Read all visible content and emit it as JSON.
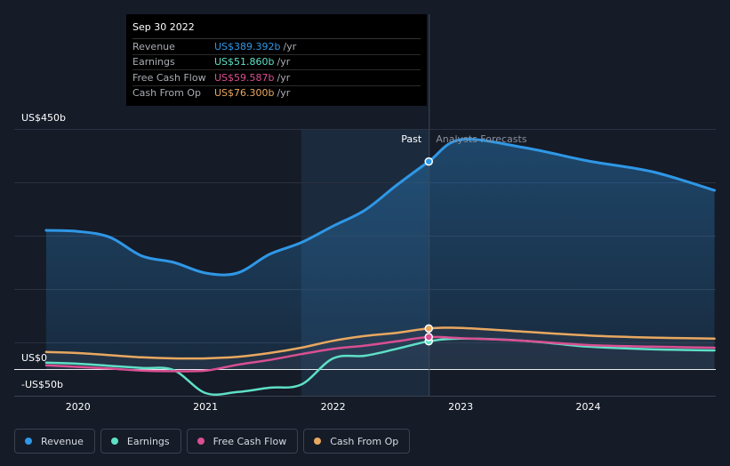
{
  "chart_data": {
    "type": "line",
    "x": [
      2019.75,
      2020.0,
      2020.25,
      2020.5,
      2020.75,
      2021.0,
      2021.25,
      2021.5,
      2021.75,
      2022.0,
      2022.25,
      2022.5,
      2022.75,
      2023.0,
      2023.5,
      2024.0,
      2024.5,
      2024.99
    ],
    "series": [
      {
        "name": "Revenue",
        "color": "#2f97e6",
        "values": [
          260,
          258,
          247,
          212,
          200,
          180,
          180,
          215,
          237,
          268,
          298,
          345,
          389,
          430,
          415,
          390,
          370,
          335
        ]
      },
      {
        "name": "Earnings",
        "color": "#5fe0c6",
        "values": [
          12,
          10,
          6,
          2,
          -2,
          -45,
          -43,
          -35,
          -29,
          20,
          25,
          38,
          52,
          57,
          53,
          42,
          37,
          35
        ]
      },
      {
        "name": "Free Cash Flow",
        "color": "#d94f92",
        "values": [
          7,
          4,
          1,
          -3,
          -4,
          -3,
          8,
          17,
          28,
          38,
          44,
          52,
          60,
          58,
          53,
          45,
          42,
          40
        ]
      },
      {
        "name": "Cash From Op",
        "color": "#e8a860",
        "values": [
          32,
          30,
          26,
          22,
          20,
          20,
          23,
          30,
          40,
          53,
          62,
          68,
          76,
          77,
          70,
          63,
          59,
          57
        ]
      }
    ],
    "xticks": [
      "2020",
      "2021",
      "2022",
      "2023",
      "2024"
    ],
    "xtick_values": [
      2020,
      2021,
      2022,
      2023,
      2024
    ],
    "xlim": [
      2019.5,
      2025.0
    ],
    "ylim": [
      -50,
      450
    ],
    "ytick_labels": {
      "top": "US$450b",
      "zero": "US$0",
      "bottom": "-US$50b"
    },
    "past_label": "Past",
    "forecast_label": "Analysts Forecasts",
    "divider_x": 2022.75,
    "highlight_start_x": 2021.75,
    "grid": true
  },
  "tooltip": {
    "date": "Sep 30 2022",
    "rows": [
      {
        "label": "Revenue",
        "value": "US$389.392b",
        "unit": "/yr",
        "color": "#2f97e6"
      },
      {
        "label": "Earnings",
        "value": "US$51.860b",
        "unit": "/yr",
        "color": "#5fe0c6"
      },
      {
        "label": "Free Cash Flow",
        "value": "US$59.587b",
        "unit": "/yr",
        "color": "#d94f92"
      },
      {
        "label": "Cash From Op",
        "value": "US$76.300b",
        "unit": "/yr",
        "color": "#e8a860"
      }
    ]
  },
  "legend": [
    {
      "label": "Revenue",
      "color": "#2f97e6"
    },
    {
      "label": "Earnings",
      "color": "#5fe0c6"
    },
    {
      "label": "Free Cash Flow",
      "color": "#d94f92"
    },
    {
      "label": "Cash From Op",
      "color": "#e8a860"
    }
  ]
}
